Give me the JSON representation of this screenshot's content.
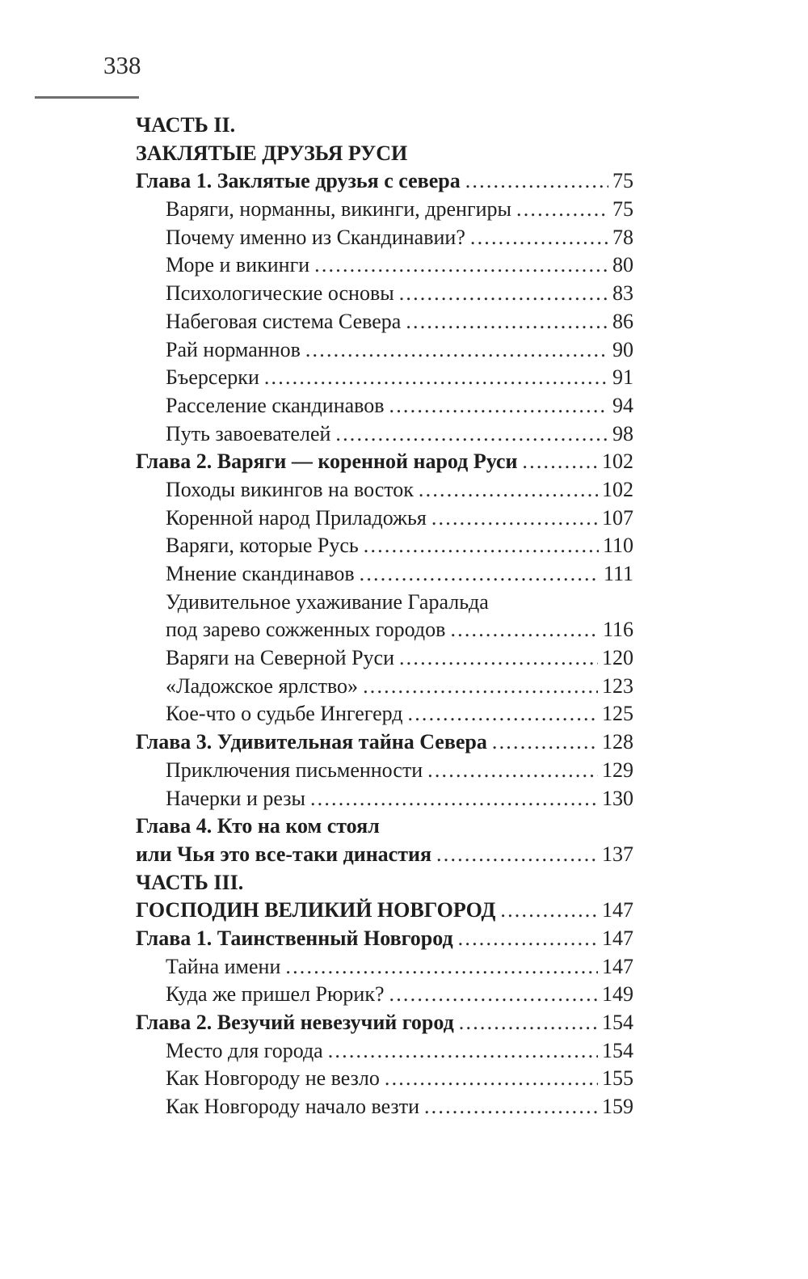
{
  "header": {
    "page_number": "338"
  },
  "toc": {
    "entries": [
      {
        "text": "ЧАСТЬ II.",
        "style": "part",
        "page": null
      },
      {
        "text": "ЗАКЛЯТЫЕ ДРУЗЬЯ РУСИ",
        "style": "part",
        "page": null
      },
      {
        "text": "Глава 1. Заклятые друзья с севера",
        "style": "chapter",
        "page": "75"
      },
      {
        "text": "Варяги, норманны, викинги, дренгиры",
        "style": "section",
        "page": "75"
      },
      {
        "text": "Почему именно из Скандинавии?",
        "style": "section",
        "page": "78"
      },
      {
        "text": "Море и викинги",
        "style": "section",
        "page": "80"
      },
      {
        "text": "Психологические основы",
        "style": "section",
        "page": "83"
      },
      {
        "text": "Набеговая система Севера",
        "style": "section",
        "page": "86"
      },
      {
        "text": "Рай норманнов",
        "style": "section",
        "page": "90"
      },
      {
        "text": "Бъерсерки",
        "style": "section",
        "page": "91"
      },
      {
        "text": "Расселение скандинавов",
        "style": "section",
        "page": "94"
      },
      {
        "text": "Путь завоевателей",
        "style": "section",
        "page": "98"
      },
      {
        "text": "Глава 2. Варяги — коренной народ Руси",
        "style": "chapter",
        "page": "102"
      },
      {
        "text": "Походы викингов на восток",
        "style": "section",
        "page": "102"
      },
      {
        "text": "Коренной народ Приладожья",
        "style": "section",
        "page": "107"
      },
      {
        "text": "Варяги, которые Русь",
        "style": "section",
        "page": "110"
      },
      {
        "text": "Мнение скандинавов",
        "style": "section",
        "page": "111"
      },
      {
        "text": "Удивительное ухаживание Гаральда",
        "style": "section",
        "page": null
      },
      {
        "text": "под зарево сожженных городов",
        "style": "section",
        "page": "116"
      },
      {
        "text": "Варяги на Северной Руси",
        "style": "section",
        "page": "120"
      },
      {
        "text": "«Ладожское ярлство»",
        "style": "section",
        "page": "123"
      },
      {
        "text": "Кое-что о судьбе Ингегерд",
        "style": "section",
        "page": "125"
      },
      {
        "text": "Глава 3. Удивительная тайна Севера",
        "style": "chapter",
        "page": "128"
      },
      {
        "text": "Приключения письменности",
        "style": "section",
        "page": "129"
      },
      {
        "text": "Начерки и резы",
        "style": "section",
        "page": "130"
      },
      {
        "text": "Глава 4. Кто на ком стоял",
        "style": "chapter",
        "page": null
      },
      {
        "text": "или Чья это все-таки династия",
        "style": "chapter",
        "page": "137"
      },
      {
        "text": "ЧАСТЬ III.",
        "style": "part",
        "page": null
      },
      {
        "text": "ГОСПОДИН ВЕЛИКИЙ НОВГОРОД",
        "style": "part",
        "page": "147"
      },
      {
        "text": "Глава 1. Таинственный Новгород",
        "style": "chapter",
        "page": "147"
      },
      {
        "text": "Тайна имени",
        "style": "section",
        "page": "147"
      },
      {
        "text": "Куда же пришел Рюрик?",
        "style": "section",
        "page": "149"
      },
      {
        "text": "Глава 2. Везучий невезучий город",
        "style": "chapter",
        "page": "154"
      },
      {
        "text": "Место для города",
        "style": "section",
        "page": "154"
      },
      {
        "text": "Как Новгороду не везло",
        "style": "section",
        "page": "155"
      },
      {
        "text": "Как Новгороду начало везти",
        "style": "section",
        "page": "159"
      }
    ]
  }
}
